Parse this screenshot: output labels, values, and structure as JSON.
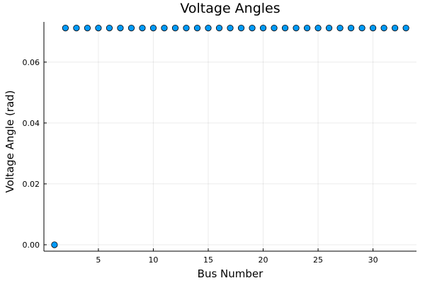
{
  "chart_data": {
    "type": "scatter",
    "title": "Voltage Angles",
    "xlabel": "Bus Number",
    "ylabel": "Voltage Angle (rad)",
    "xlim": [
      0.04,
      33.96
    ],
    "ylim": [
      -0.0021,
      0.0732
    ],
    "xticks": [
      5,
      10,
      15,
      20,
      25,
      30
    ],
    "xtick_labels": [
      "5",
      "10",
      "15",
      "20",
      "25",
      "30"
    ],
    "yticks": [
      0.0,
      0.02,
      0.04,
      0.06
    ],
    "ytick_labels": [
      "0.00",
      "0.02",
      "0.04",
      "0.06"
    ],
    "grid": true,
    "legend": false,
    "marker_color": "#009AFA",
    "series": [
      {
        "x": [
          1,
          2,
          3,
          4,
          5,
          6,
          7,
          8,
          9,
          10,
          11,
          12,
          13,
          14,
          15,
          16,
          17,
          18,
          19,
          20,
          21,
          22,
          23,
          24,
          25,
          26,
          27,
          28,
          29,
          30,
          31,
          32,
          33
        ],
        "y": [
          0.0,
          0.0712,
          0.0712,
          0.0712,
          0.0712,
          0.0712,
          0.0712,
          0.0712,
          0.0712,
          0.0712,
          0.0712,
          0.0712,
          0.0712,
          0.0712,
          0.0712,
          0.0712,
          0.0712,
          0.0712,
          0.0712,
          0.0712,
          0.0712,
          0.0712,
          0.0712,
          0.0712,
          0.0712,
          0.0712,
          0.0712,
          0.0712,
          0.0712,
          0.0712,
          0.0712,
          0.0712,
          0.0712
        ]
      }
    ]
  }
}
